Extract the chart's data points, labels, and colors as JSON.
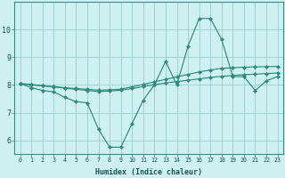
{
  "xlabel": "Humidex (Indice chaleur)",
  "bg_color": "#cef0f0",
  "line_color": "#2e8b7a",
  "grid_color": "#99cccc",
  "xlim": [
    -0.5,
    23.5
  ],
  "ylim": [
    5.5,
    11.0
  ],
  "xticks": [
    0,
    1,
    2,
    3,
    4,
    5,
    6,
    7,
    8,
    9,
    10,
    11,
    12,
    13,
    14,
    15,
    16,
    17,
    18,
    19,
    20,
    21,
    22,
    23
  ],
  "yticks": [
    6,
    7,
    8,
    9,
    10
  ],
  "series": [
    [
      8.05,
      7.9,
      7.8,
      7.75,
      7.55,
      7.4,
      7.35,
      6.4,
      5.75,
      5.75,
      6.6,
      7.45,
      8.0,
      8.85,
      8.0,
      9.4,
      10.4,
      10.4,
      9.65,
      8.3,
      8.3,
      7.8,
      8.15,
      8.3
    ],
    [
      8.05,
      8.0,
      7.97,
      7.94,
      7.9,
      7.87,
      7.84,
      7.81,
      7.82,
      7.85,
      7.93,
      8.02,
      8.11,
      8.2,
      8.29,
      8.38,
      8.47,
      8.54,
      8.6,
      8.62,
      8.64,
      8.65,
      8.66,
      8.67
    ],
    [
      8.05,
      8.02,
      7.97,
      7.93,
      7.88,
      7.84,
      7.8,
      7.76,
      7.78,
      7.81,
      7.87,
      7.94,
      8.01,
      8.07,
      8.12,
      8.17,
      8.22,
      8.27,
      8.31,
      8.34,
      8.37,
      8.39,
      8.41,
      8.43
    ]
  ],
  "xlabel_fontsize": 6.0,
  "xtick_fontsize": 4.8,
  "ytick_fontsize": 6.0,
  "marker": "D",
  "markersize": 2.2,
  "linewidth": 0.85
}
